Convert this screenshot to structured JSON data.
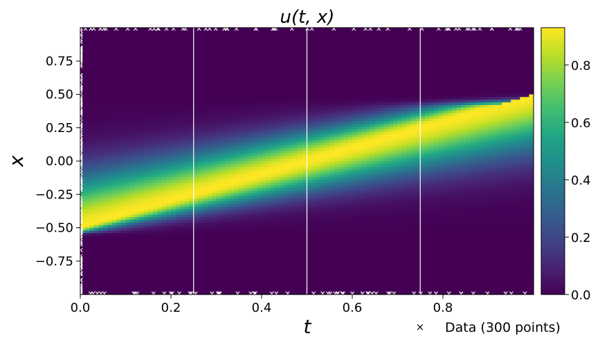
{
  "chart_data": {
    "type": "heatmap",
    "title": "u(t, x)",
    "xlabel": "t",
    "ylabel": "x",
    "xlim": [
      0,
      1
    ],
    "ylim": [
      -1,
      1
    ],
    "x_ticks": [
      "0.0",
      "0.2",
      "0.4",
      "0.6",
      "0.8"
    ],
    "x_tick_values": [
      0,
      0.2,
      0.4,
      0.6,
      0.8
    ],
    "y_ticks": [
      "0.75",
      "0.50",
      "0.25",
      "0.00",
      "−0.25",
      "−0.50",
      "−0.75"
    ],
    "y_tick_values": [
      0.75,
      0.5,
      0.25,
      0,
      -0.25,
      -0.5,
      -0.75
    ],
    "colorbar": {
      "min": 0,
      "max": 0.93,
      "ticks": [
        "0.0",
        "0.2",
        "0.4",
        "0.6",
        "0.8"
      ],
      "tick_values": [
        0,
        0.2,
        0.4,
        0.6,
        0.8
      ],
      "colormap": "viridis"
    },
    "field": {
      "description": "advected pulse: crest at x = -0.5 + t",
      "crest_start": -0.5,
      "speed": 1.0,
      "peak": 0.93,
      "upper_edge": 0.4,
      "lower_edge": -0.52
    },
    "vertical_lines_t": [
      0.25,
      0.5,
      0.75
    ],
    "legend": {
      "label": "Data (300 points)",
      "marker": "×",
      "placement": "lower-right outside"
    },
    "data_points": {
      "count": 300,
      "marker": "x",
      "locations": "boundaries t=0, x=-1, x=1"
    },
    "grid": false
  }
}
